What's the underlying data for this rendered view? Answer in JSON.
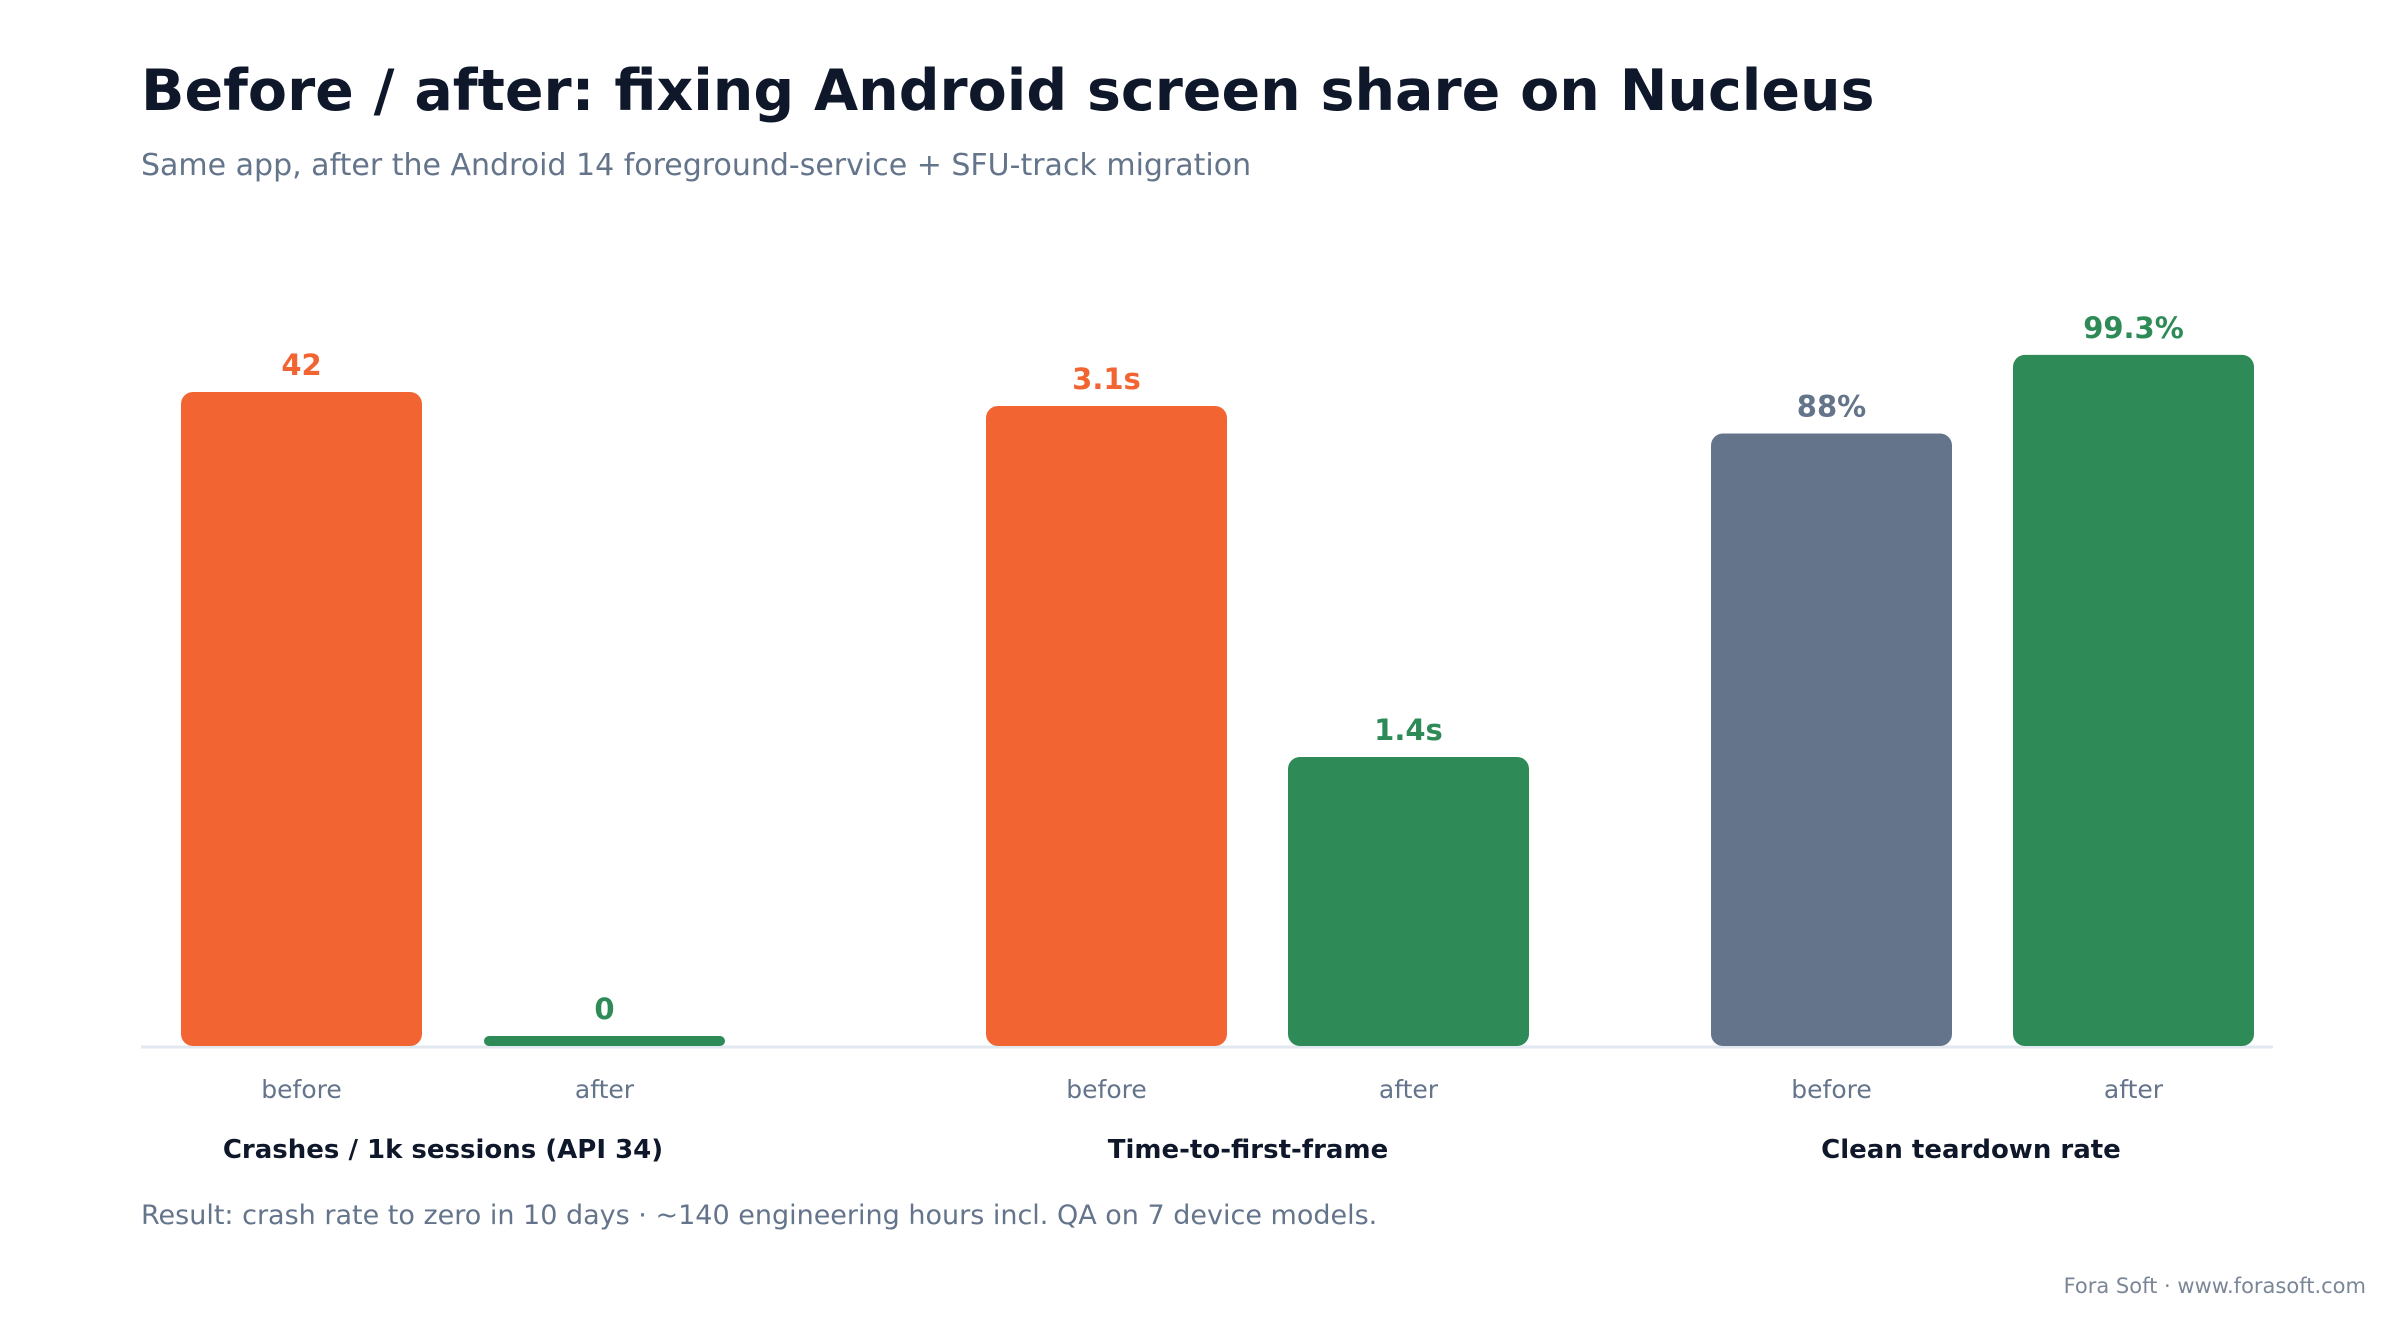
{
  "title": "Before / after: fixing Android screen share on Nucleus",
  "subtitle": "Same app, after the Android 14 foreground-service + SFU-track migration",
  "note": "Result: crash rate to zero in 10 days · ~140 engineering hours incl. QA on 7 device models.",
  "credit": "Fora Soft · www.forasoft.com",
  "colors": {
    "before": "#f26533",
    "after": "#2e8b57",
    "neutral": "#64748b",
    "axis": "#e2e8f0",
    "tick": "#64748b",
    "group": "#0f172a"
  },
  "chart_data": {
    "type": "bar",
    "grid": false,
    "legend": "none",
    "groups": [
      {
        "name": "Crashes / 1k sessions (API 34)",
        "ylim": [
          0,
          42
        ],
        "bars": [
          {
            "label": "before",
            "value": 42,
            "display": "42",
            "color": "before"
          },
          {
            "label": "after",
            "value": 0,
            "display": "0",
            "color": "after"
          }
        ]
      },
      {
        "name": "Time-to-first-frame",
        "ylim": [
          0,
          3.1
        ],
        "bars": [
          {
            "label": "before",
            "value": 3.1,
            "display": "3.1s",
            "color": "before"
          },
          {
            "label": "after",
            "value": 1.4,
            "display": "1.4s",
            "color": "after"
          }
        ]
      },
      {
        "name": "Clean teardown rate",
        "ylim": [
          0,
          100
        ],
        "bars": [
          {
            "label": "before",
            "value": 88,
            "display": "88%",
            "color": "neutral"
          },
          {
            "label": "after",
            "value": 99.3,
            "display": "99.3%",
            "color": "after"
          }
        ]
      }
    ]
  }
}
